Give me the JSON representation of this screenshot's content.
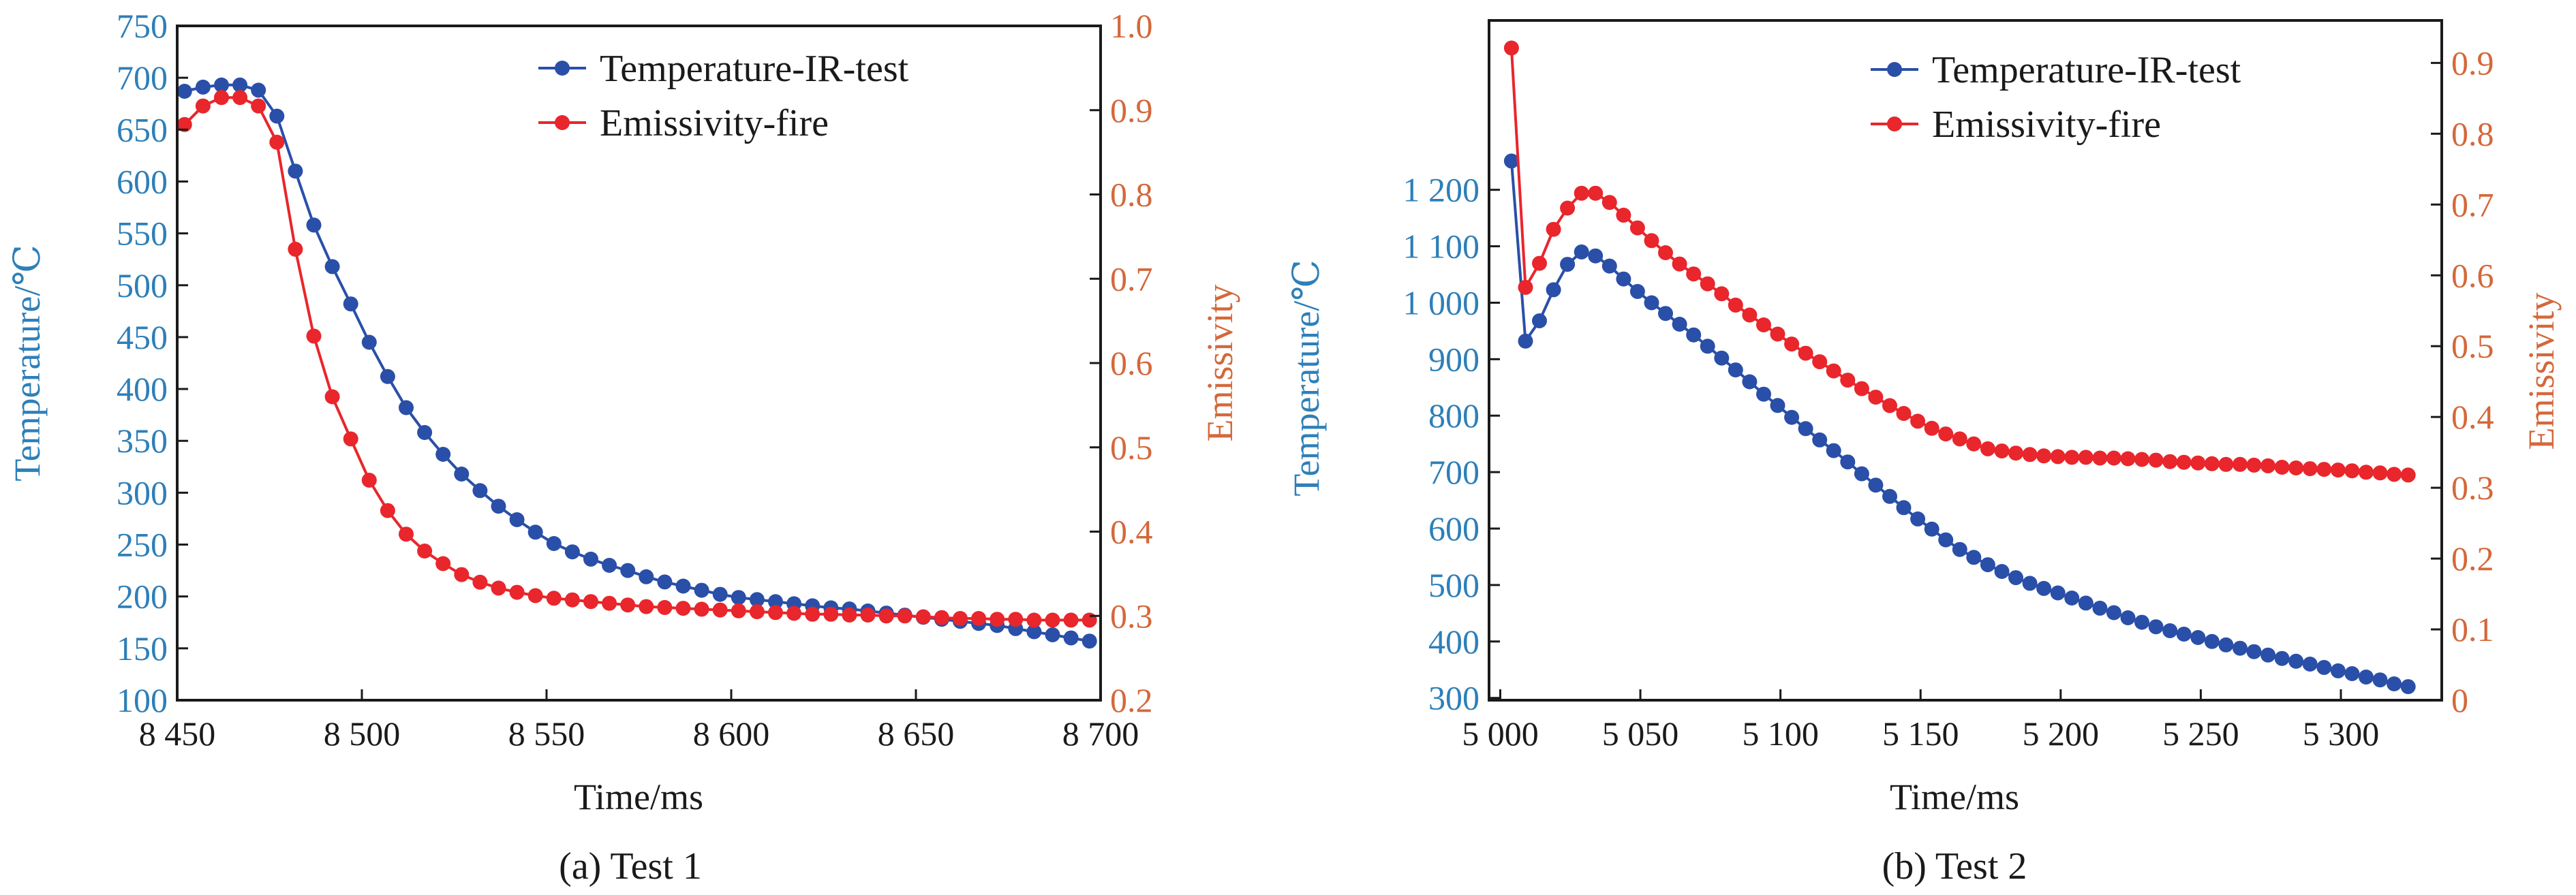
{
  "colors": {
    "temperature": "#2a4fa8",
    "emissivity": "#e8262c",
    "left_axis": "#2e7fb8",
    "right_axis": "#d4683a",
    "axis": "#1a1a1a"
  },
  "chart_data": [
    {
      "type": "line",
      "caption": "(a) Test 1",
      "xlabel": "Time/ms",
      "ylabel": "Temperature/℃",
      "y2label": "Emissivity",
      "xlim": [
        8450,
        8700
      ],
      "ylim": [
        100,
        750
      ],
      "y2lim": [
        0.2,
        1.0
      ],
      "xticks": [
        8450,
        8500,
        8550,
        8600,
        8650,
        8700
      ],
      "xtick_labels": [
        "8 450",
        "8 500",
        "8 550",
        "8 600",
        "8 650",
        "8 700"
      ],
      "yticks": [
        100,
        150,
        200,
        250,
        300,
        350,
        400,
        450,
        500,
        550,
        600,
        650,
        700,
        750
      ],
      "ytick_labels": [
        "100",
        "150",
        "200",
        "250",
        "300",
        "350",
        "400",
        "450",
        "500",
        "550",
        "600",
        "650",
        "700",
        "750"
      ],
      "y2ticks": [
        0.2,
        0.3,
        0.4,
        0.5,
        0.6,
        0.7,
        0.8,
        0.9,
        1.0
      ],
      "y2tick_labels": [
        "0.2",
        "0.3",
        "0.4",
        "0.5",
        "0.6",
        "0.7",
        "0.8",
        "0.9",
        "1.0"
      ],
      "legend_position": "top-right",
      "x": [
        8452,
        8457,
        8462,
        8467,
        8472,
        8477,
        8482,
        8487,
        8492,
        8497,
        8502,
        8507,
        8512,
        8517,
        8522,
        8527,
        8532,
        8537,
        8542,
        8547,
        8552,
        8557,
        8562,
        8567,
        8572,
        8577,
        8582,
        8587,
        8592,
        8597,
        8602,
        8607,
        8612,
        8617,
        8622,
        8627,
        8632,
        8637,
        8642,
        8647,
        8652,
        8657,
        8662,
        8667,
        8672,
        8677,
        8682,
        8687,
        8692,
        8697
      ],
      "series": [
        {
          "name": "Temperature-IR-test",
          "axis": "left",
          "values": [
            687,
            691,
            693,
            693,
            688,
            663,
            610,
            558,
            518,
            482,
            445,
            412,
            382,
            358,
            337,
            318,
            302,
            287,
            274,
            262,
            251,
            243,
            236,
            230,
            225,
            219,
            214,
            210,
            206,
            202,
            199,
            197,
            195,
            193,
            191,
            189,
            188,
            186,
            184,
            182,
            180,
            178,
            176,
            174,
            172,
            169,
            166,
            163,
            160,
            157
          ]
        },
        {
          "name": "Emissivity-fire",
          "axis": "right",
          "values": [
            0.883,
            0.905,
            0.915,
            0.915,
            0.905,
            0.862,
            0.735,
            0.632,
            0.56,
            0.51,
            0.461,
            0.425,
            0.397,
            0.377,
            0.362,
            0.349,
            0.34,
            0.333,
            0.328,
            0.324,
            0.321,
            0.319,
            0.317,
            0.315,
            0.313,
            0.311,
            0.31,
            0.309,
            0.308,
            0.307,
            0.306,
            0.305,
            0.304,
            0.303,
            0.302,
            0.302,
            0.301,
            0.301,
            0.3,
            0.3,
            0.299,
            0.298,
            0.297,
            0.297,
            0.296,
            0.296,
            0.295,
            0.295,
            0.295,
            0.295
          ]
        }
      ]
    },
    {
      "type": "line",
      "caption": "(b) Test 2",
      "xlabel": "Time/ms",
      "ylabel": "Temperature/℃",
      "y2label": "Emissivity",
      "xlim": [
        4996,
        5336
      ],
      "ylim": [
        296,
        1500
      ],
      "y2lim": [
        0,
        0.96
      ],
      "xticks": [
        5000,
        5050,
        5100,
        5150,
        5200,
        5250,
        5300
      ],
      "xtick_labels": [
        "5 000",
        "5 050",
        "5 100",
        "5 150",
        "5 200",
        "5 250",
        "5 300"
      ],
      "yticks": [
        300,
        400,
        500,
        600,
        700,
        800,
        900,
        1000,
        1100,
        1200
      ],
      "ytick_labels": [
        "300",
        "400",
        "500",
        "600",
        "700",
        "800",
        "900",
        "1 000",
        "1 100",
        "1 200"
      ],
      "y2ticks": [
        0,
        0.1,
        0.2,
        0.3,
        0.4,
        0.5,
        0.6,
        0.7,
        0.8,
        0.9
      ],
      "y2tick_labels": [
        "0",
        "0.1",
        "0.2",
        "0.3",
        "0.4",
        "0.5",
        "0.6",
        "0.7",
        "0.8",
        "0.9"
      ],
      "legend_position": "top-right",
      "x": [
        5004,
        5009,
        5014,
        5019,
        5024,
        5029,
        5034,
        5039,
        5044,
        5049,
        5054,
        5059,
        5064,
        5069,
        5074,
        5079,
        5084,
        5089,
        5094,
        5099,
        5104,
        5109,
        5114,
        5119,
        5124,
        5129,
        5134,
        5139,
        5144,
        5149,
        5154,
        5159,
        5164,
        5169,
        5174,
        5179,
        5184,
        5189,
        5194,
        5199,
        5204,
        5209,
        5214,
        5219,
        5224,
        5229,
        5234,
        5239,
        5244,
        5249,
        5254,
        5259,
        5264,
        5269,
        5274,
        5279,
        5284,
        5289,
        5294,
        5299,
        5304,
        5309,
        5314,
        5319,
        5324
      ],
      "series": [
        {
          "name": "Temperature-IR-test",
          "axis": "left",
          "values": [
            1251,
            932,
            968,
            1023,
            1068,
            1090,
            1083,
            1065,
            1042,
            1020,
            1000,
            981,
            962,
            943,
            923,
            902,
            881,
            860,
            838,
            818,
            797,
            777,
            757,
            738,
            718,
            697,
            677,
            657,
            637,
            617,
            599,
            580,
            563,
            549,
            536,
            524,
            513,
            503,
            494,
            486,
            477,
            468,
            459,
            451,
            442,
            434,
            426,
            419,
            413,
            407,
            400,
            394,
            388,
            382,
            376,
            370,
            365,
            360,
            354,
            348,
            343,
            337,
            332,
            325,
            320
          ]
        },
        {
          "name": "Emissivity-fire",
          "axis": "right",
          "values": [
            0.921,
            0.583,
            0.617,
            0.665,
            0.695,
            0.716,
            0.716,
            0.703,
            0.685,
            0.667,
            0.649,
            0.632,
            0.616,
            0.602,
            0.588,
            0.574,
            0.558,
            0.544,
            0.53,
            0.517,
            0.503,
            0.49,
            0.478,
            0.465,
            0.452,
            0.44,
            0.428,
            0.416,
            0.405,
            0.394,
            0.384,
            0.376,
            0.369,
            0.362,
            0.355,
            0.352,
            0.349,
            0.347,
            0.345,
            0.344,
            0.343,
            0.343,
            0.342,
            0.342,
            0.341,
            0.34,
            0.339,
            0.337,
            0.336,
            0.335,
            0.334,
            0.333,
            0.333,
            0.332,
            0.331,
            0.329,
            0.328,
            0.327,
            0.326,
            0.325,
            0.324,
            0.322,
            0.321,
            0.319,
            0.318
          ]
        }
      ]
    }
  ]
}
